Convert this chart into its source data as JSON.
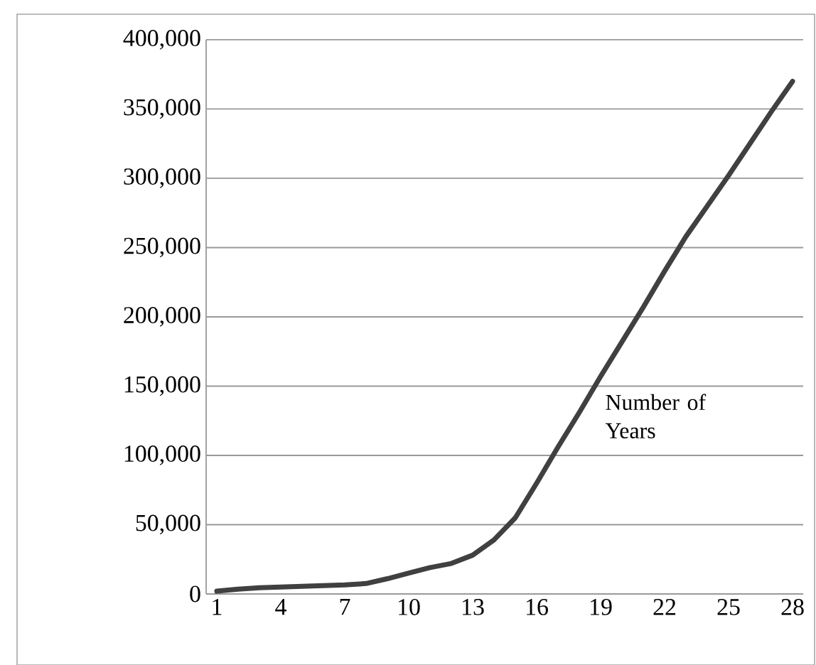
{
  "chart_data": {
    "type": "line",
    "categories": [
      "1",
      null,
      null,
      "4",
      null,
      null,
      "7",
      null,
      null,
      "10",
      null,
      null,
      "13",
      null,
      null,
      "16",
      null,
      null,
      "19",
      null,
      null,
      "22",
      null,
      null,
      "25",
      null,
      null,
      "28"
    ],
    "series": [
      {
        "color": "#404040",
        "values": [
          2000,
          3500,
          4500,
          5000,
          5500,
          6000,
          6500,
          7500,
          11000,
          15000,
          19000,
          22000,
          28000,
          39000,
          55000,
          80000,
          106000,
          131000,
          157000,
          182000,
          207000,
          233000,
          258000,
          280000,
          302000,
          325000,
          348000,
          370000
        ]
      }
    ],
    "ylim": [
      0,
      400000
    ],
    "yticks": [
      {
        "value": 0,
        "label": "0"
      },
      {
        "value": 50000,
        "label": "50,000"
      },
      {
        "value": 100000,
        "label": "100,000"
      },
      {
        "value": 150000,
        "label": "150,000"
      },
      {
        "value": 200000,
        "label": "200,000"
      },
      {
        "value": 250000,
        "label": "250,000"
      },
      {
        "value": 300000,
        "label": "300,000"
      },
      {
        "value": 350000,
        "label": "350,000"
      },
      {
        "value": 400000,
        "label": "400,000"
      }
    ],
    "grid": "y",
    "marker": "none",
    "line_style": "solid",
    "annotations": [
      "Number of Years"
    ]
  }
}
